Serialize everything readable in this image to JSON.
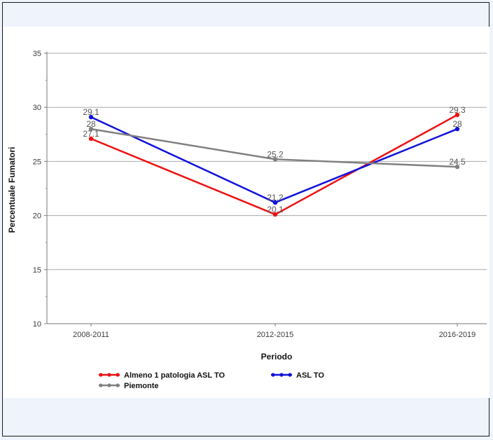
{
  "chart_data": {
    "type": "line",
    "categories": [
      "2008-2011",
      "2012-2015",
      "2016-2019"
    ],
    "xlabel": "Periodo",
    "ylabel": "Percentuale Fumatori",
    "ylim": [
      10,
      35
    ],
    "yticks": [
      10,
      15,
      20,
      25,
      30,
      35
    ],
    "grid": true,
    "legend_position": "bottom-left",
    "series": [
      {
        "name": "Almeno 1 patologia ASL TO",
        "color": "#ee1111",
        "values": [
          27.1,
          20.1,
          29.3
        ]
      },
      {
        "name": "ASL TO",
        "color": "#1111dd",
        "values": [
          29.1,
          21.2,
          28
        ]
      },
      {
        "name": "Piemonte",
        "color": "#808080",
        "values": [
          28,
          25.2,
          24.5
        ]
      }
    ]
  }
}
